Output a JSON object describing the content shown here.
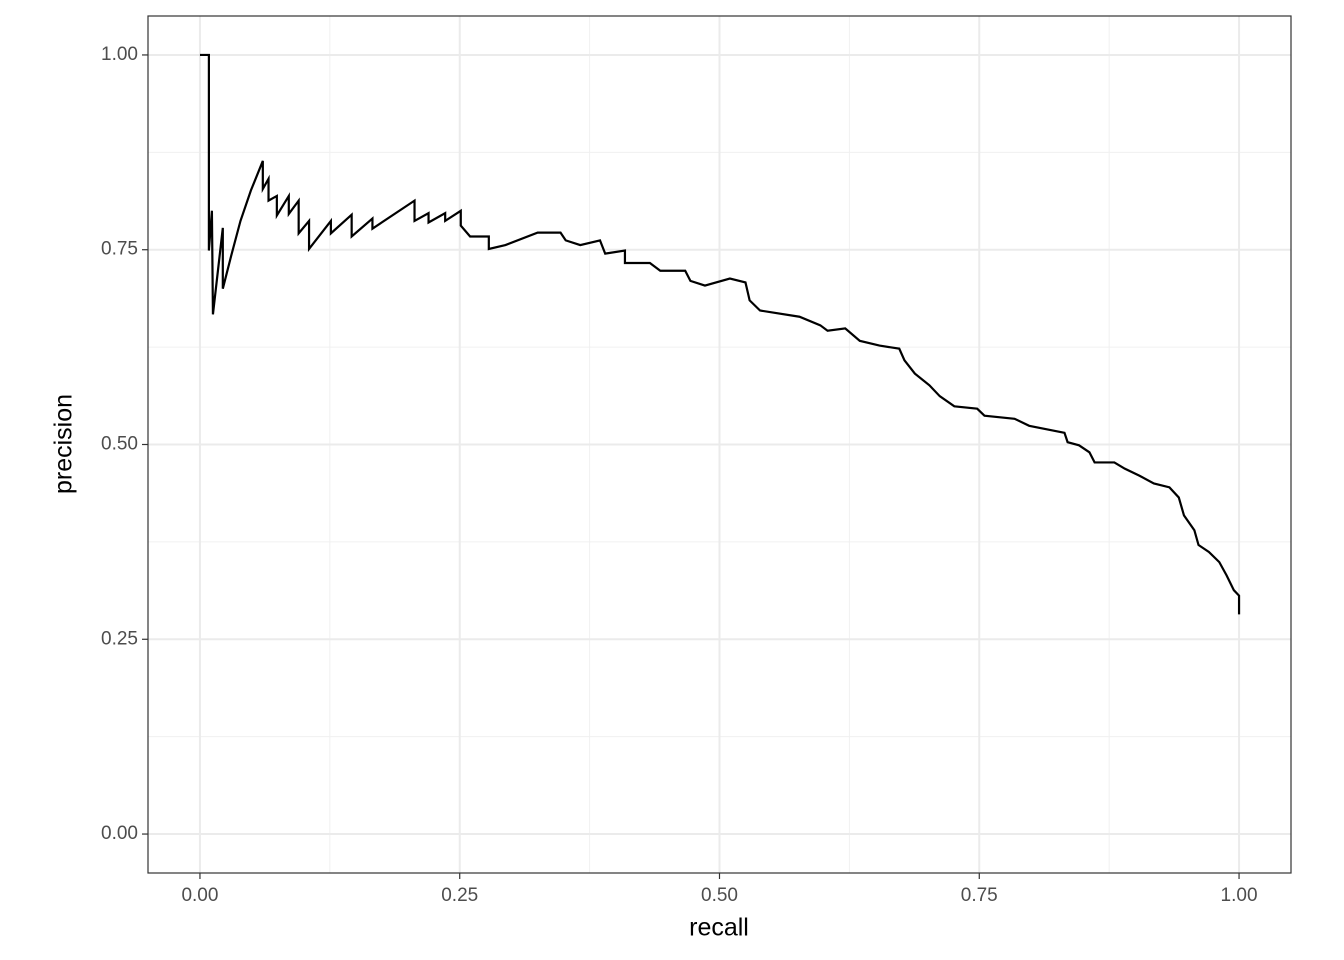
{
  "chart_data": {
    "type": "line",
    "x_label": "recall",
    "y_label": "precision",
    "xlim": [
      -0.05,
      1.05
    ],
    "ylim": [
      -0.05,
      1.05
    ],
    "xticks": [
      {
        "value": 0,
        "label": "0.00"
      },
      {
        "value": 0.25,
        "label": "0.25"
      },
      {
        "value": 0.5,
        "label": "0.50"
      },
      {
        "value": 0.75,
        "label": "0.75"
      },
      {
        "value": 1,
        "label": "1.00"
      }
    ],
    "yticks": [
      {
        "value": 0,
        "label": "0.00"
      },
      {
        "value": 0.25,
        "label": "0.25"
      },
      {
        "value": 0.5,
        "label": "0.50"
      },
      {
        "value": 0.75,
        "label": "0.75"
      },
      {
        "value": 1,
        "label": "1.00"
      }
    ],
    "grid": true,
    "color": "#000000",
    "x": [
      0,
      0.0086,
      0.0086,
      0.0115,
      0.0125,
      0.022,
      0.022,
      0.03,
      0.039,
      0.049,
      0.0605,
      0.0605,
      0.066,
      0.066,
      0.074,
      0.074,
      0.0855,
      0.0855,
      0.095,
      0.095,
      0.105,
      0.105,
      0.126,
      0.126,
      0.146,
      0.146,
      0.166,
      0.166,
      0.2065,
      0.2065,
      0.22,
      0.22,
      0.236,
      0.236,
      0.251,
      0.251,
      0.26,
      0.278,
      0.278,
      0.294,
      0.325,
      0.347,
      0.352,
      0.366,
      0.385,
      0.39,
      0.409,
      0.409,
      0.433,
      0.443,
      0.467,
      0.472,
      0.486,
      0.51,
      0.525,
      0.529,
      0.539,
      0.577,
      0.597,
      0.604,
      0.621,
      0.635,
      0.654,
      0.673,
      0.678,
      0.688,
      0.702,
      0.712,
      0.726,
      0.748,
      0.755,
      0.784,
      0.798,
      0.832,
      0.835,
      0.846,
      0.856,
      0.861,
      0.88,
      0.89,
      0.904,
      0.918,
      0.933,
      0.942,
      0.947,
      0.957,
      0.961,
      0.971,
      0.981,
      0.988,
      0.995,
      1.0,
      1.0
    ],
    "values": [
      1.0,
      1.0,
      0.749,
      0.8,
      0.667,
      0.778,
      0.7,
      0.742,
      0.787,
      0.826,
      0.864,
      0.828,
      0.841,
      0.813,
      0.819,
      0.794,
      0.819,
      0.796,
      0.813,
      0.771,
      0.787,
      0.751,
      0.787,
      0.771,
      0.795,
      0.767,
      0.79,
      0.777,
      0.813,
      0.787,
      0.797,
      0.785,
      0.797,
      0.787,
      0.8,
      0.781,
      0.767,
      0.767,
      0.751,
      0.756,
      0.772,
      0.772,
      0.762,
      0.756,
      0.762,
      0.745,
      0.749,
      0.733,
      0.733,
      0.723,
      0.723,
      0.71,
      0.704,
      0.713,
      0.708,
      0.685,
      0.672,
      0.664,
      0.653,
      0.646,
      0.649,
      0.633,
      0.627,
      0.623,
      0.608,
      0.591,
      0.576,
      0.562,
      0.549,
      0.546,
      0.537,
      0.533,
      0.524,
      0.515,
      0.503,
      0.499,
      0.49,
      0.477,
      0.477,
      0.469,
      0.46,
      0.45,
      0.445,
      0.432,
      0.409,
      0.39,
      0.371,
      0.362,
      0.349,
      0.332,
      0.313,
      0.306,
      0.282
    ]
  }
}
